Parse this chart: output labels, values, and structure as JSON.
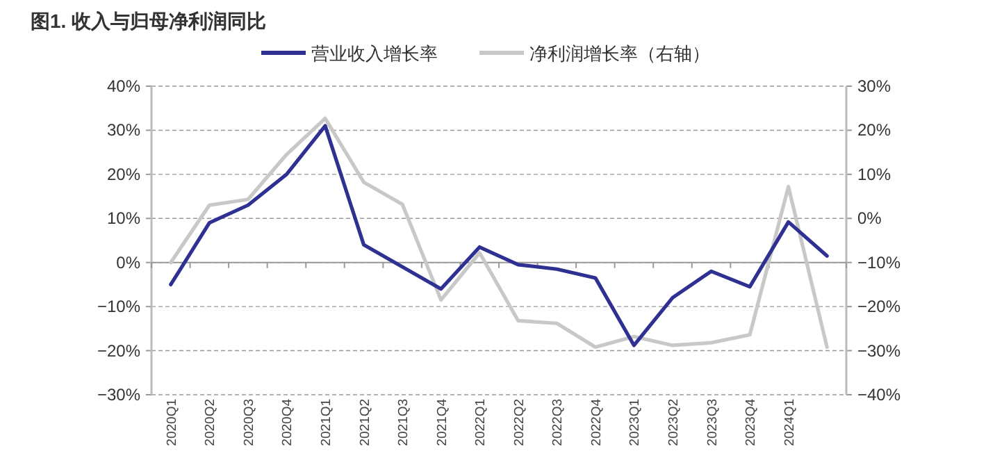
{
  "chart_data": {
    "type": "line",
    "title": "图1. 收入与归母净利润同比",
    "categories": [
      "2020Q1",
      "2020Q2",
      "2020Q3",
      "2020Q4",
      "2021Q1",
      "2021Q2",
      "2021Q3",
      "2021Q4",
      "2022Q1",
      "2022Q2",
      "2022Q3",
      "2022Q4",
      "2023Q1",
      "2023Q2",
      "2023Q3",
      "2023Q4",
      "2024Q1",
      null
    ],
    "series": [
      {
        "name": "营业收入增长率",
        "color": "#2e3192",
        "values": [
          -5,
          9,
          13,
          20,
          31,
          4,
          -1,
          -6,
          3.5,
          -0.5,
          -1.5,
          -3.5,
          -18.8,
          -8,
          -2,
          -5.5,
          9.2,
          1.5
        ]
      },
      {
        "name": "净利润增长率（右轴）",
        "color": "#c8c8c8",
        "axis": "y2",
        "values": [
          -10,
          3,
          4.3,
          14.5,
          22.7,
          8.2,
          3.2,
          -18.5,
          -7.8,
          -23.2,
          -23.8,
          -29.2,
          -26.8,
          -28.8,
          -28.2,
          -26.4,
          7.2,
          -29.2
        ]
      }
    ],
    "ylim": [
      -30,
      40
    ],
    "yticks": [
      {
        "value": -30,
        "label": "−30%"
      },
      {
        "value": -20,
        "label": "−20%"
      },
      {
        "value": -10,
        "label": "−10%"
      },
      {
        "value": 0,
        "label": "0%"
      },
      {
        "value": 10,
        "label": "10%"
      },
      {
        "value": 20,
        "label": "20%"
      },
      {
        "value": 30,
        "label": "30%"
      },
      {
        "value": 40,
        "label": "40%"
      }
    ],
    "y2lim": [
      -40,
      30
    ],
    "y2ticks": [
      {
        "value": -40,
        "label": "−40%"
      },
      {
        "value": -30,
        "label": "−30%"
      },
      {
        "value": -20,
        "label": "−20%"
      },
      {
        "value": -10,
        "label": "−10%"
      },
      {
        "value": 0,
        "label": "0%"
      },
      {
        "value": 10,
        "label": "10%"
      },
      {
        "value": 20,
        "label": "20%"
      },
      {
        "value": 30,
        "label": "30%"
      }
    ],
    "grid": "y",
    "legend": "top",
    "line_style": "solid",
    "marker": "none"
  }
}
